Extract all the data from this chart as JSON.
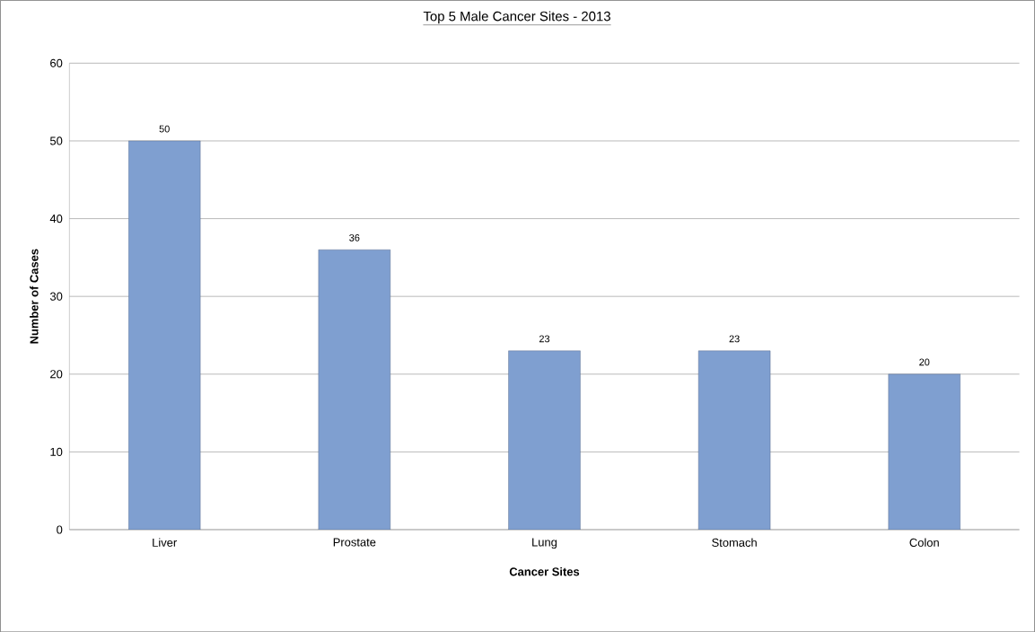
{
  "chart_data": {
    "type": "bar",
    "title": "Top 5 Male Cancer Sites - 2013",
    "xlabel": "Cancer Sites",
    "ylabel": "Number of Cases",
    "categories": [
      "Liver",
      "Prostate",
      "Lung",
      "Stomach",
      "Colon"
    ],
    "values": [
      50,
      36,
      23,
      23,
      20
    ],
    "color": "#7f9fd0",
    "ylim": [
      0,
      60
    ],
    "yticks": [
      0,
      10,
      20,
      30,
      40,
      50,
      60
    ],
    "grid": "y",
    "data_labels": true
  }
}
